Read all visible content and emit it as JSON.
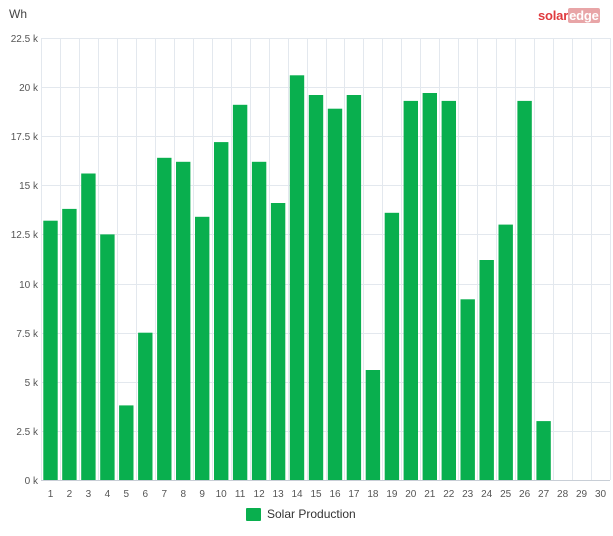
{
  "header": {
    "unit": "Wh",
    "brand_part1": "solar",
    "brand_part2": "edge"
  },
  "colors": {
    "bar": "#09af4e",
    "grid": "#e3e8ee",
    "brand": "#e03a3e"
  },
  "chart_data": {
    "type": "bar",
    "title": "",
    "xlabel": "",
    "ylabel": "Wh",
    "ylim": [
      0,
      22500
    ],
    "y_ticks": [
      "0 k",
      "2.5 k",
      "5 k",
      "7.5 k",
      "10 k",
      "12.5 k",
      "15 k",
      "17.5 k",
      "20 k",
      "22.5 k"
    ],
    "categories": [
      "1",
      "2",
      "3",
      "4",
      "5",
      "6",
      "7",
      "8",
      "9",
      "10",
      "11",
      "12",
      "13",
      "14",
      "15",
      "16",
      "17",
      "18",
      "19",
      "20",
      "21",
      "22",
      "23",
      "24",
      "25",
      "26",
      "27",
      "28",
      "29",
      "30"
    ],
    "series": [
      {
        "name": "Solar Production",
        "values": [
          13200,
          13800,
          15600,
          12500,
          3800,
          7500,
          16400,
          16200,
          13400,
          17200,
          19100,
          16200,
          14100,
          20600,
          19600,
          18900,
          19600,
          5600,
          13600,
          19300,
          19700,
          19300,
          9200,
          11200,
          13000,
          19300,
          3000,
          null,
          null,
          null
        ]
      }
    ],
    "legend": "bottom-center",
    "grid": true
  }
}
